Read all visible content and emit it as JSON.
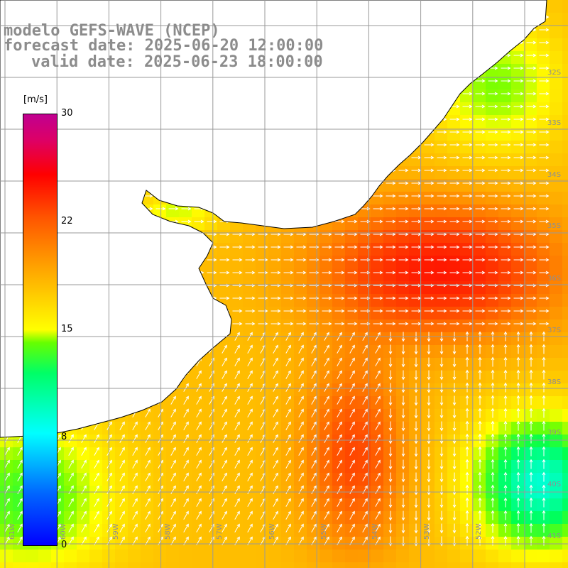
{
  "title": {
    "model": "modelo GEFS-WAVE (NCEP)",
    "forecast": "forecast date: 2025-06-20 12:00:00",
    "valid": "valid date: 2025-06-23 18:00:00"
  },
  "colorbar": {
    "unit": "[m/s]",
    "ticks": [
      "30",
      "22",
      "15",
      "8",
      "0"
    ],
    "colors": [
      "#0000ff",
      "#00ffff",
      "#00ff00",
      "#ffff00",
      "#ff9900",
      "#ff0000",
      "#c00090"
    ]
  },
  "lat_labels": [
    "32S",
    "33S",
    "34S",
    "35S",
    "36S",
    "37S",
    "38S",
    "39S",
    "40S",
    "41S"
  ],
  "lon_labels": [
    "61W",
    "60W",
    "59W",
    "58W",
    "57W",
    "56W",
    "55W",
    "54W",
    "53W",
    "52W"
  ],
  "land_color": "#ffffff",
  "grid_color": "#999999"
}
